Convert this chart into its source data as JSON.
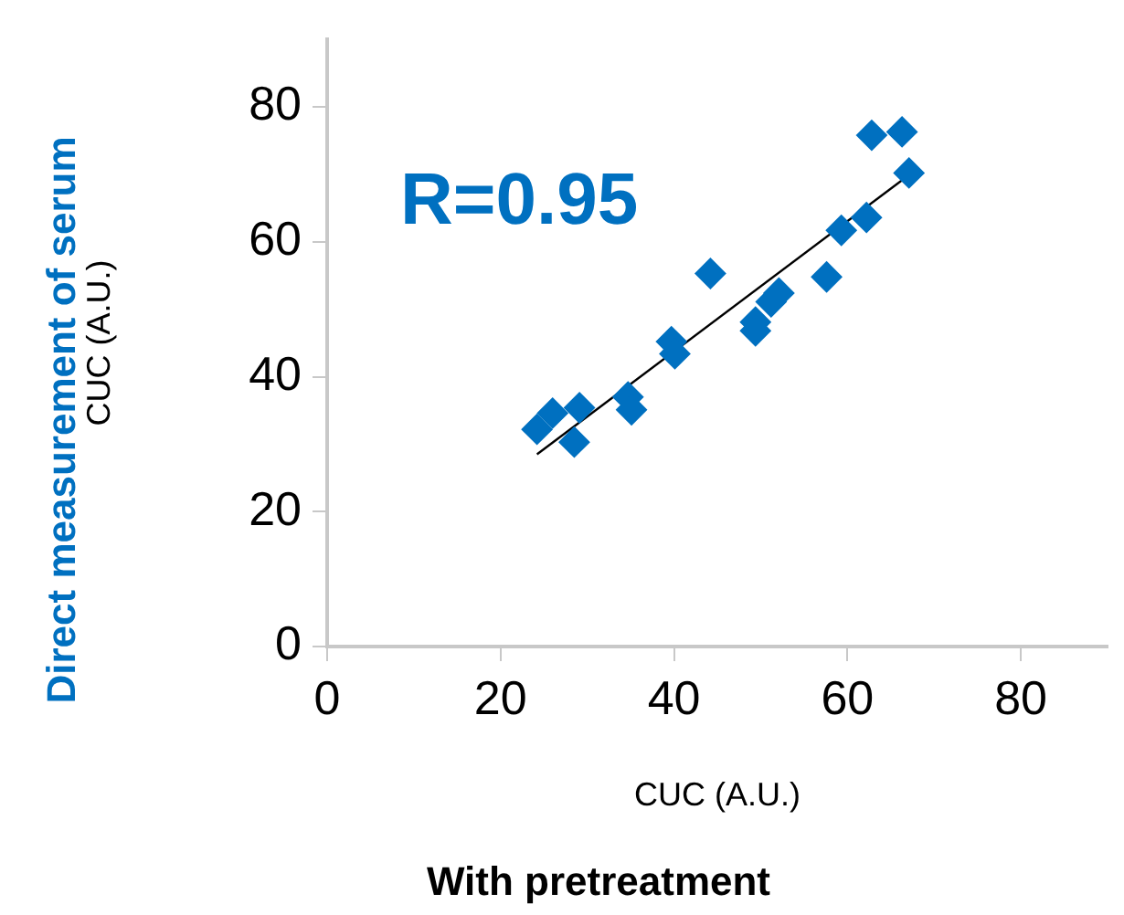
{
  "chart_data": {
    "type": "scatter",
    "xlabel": "CUC (A.U.)",
    "ylabel": "CUC (A.U.)",
    "annotations": [
      "R=0.95",
      "With pretreatment",
      "Direct measurement of serum"
    ],
    "xlim": [
      0,
      90
    ],
    "xticks": [
      0,
      20,
      40,
      60,
      80
    ],
    "ylim": [
      0,
      90
    ],
    "yticks": [
      0,
      20,
      40,
      60,
      80
    ],
    "grid": false,
    "legend": false,
    "marker": "diamond",
    "series": [
      {
        "color": "#0070c0",
        "x": [
          24.2,
          26.0,
          29.1,
          28.5,
          34.7,
          35.1,
          39.7,
          40.1,
          44.2,
          49.4,
          49.4,
          51.2,
          52.1,
          57.6,
          59.3,
          62.2,
          62.8,
          66.3,
          67.1
        ],
        "values": [
          32.2,
          34.6,
          35.4,
          30.3,
          37.0,
          35.1,
          45.2,
          43.4,
          55.3,
          48.1,
          46.8,
          51.1,
          52.4,
          54.8,
          61.7,
          63.6,
          75.8,
          76.3,
          70.2
        ]
      },
      {
        "type": "line",
        "color": "#000000",
        "marker": "none",
        "x": [
          24.2,
          67.4
        ],
        "values": [
          28.5,
          70.2
        ]
      }
    ]
  }
}
